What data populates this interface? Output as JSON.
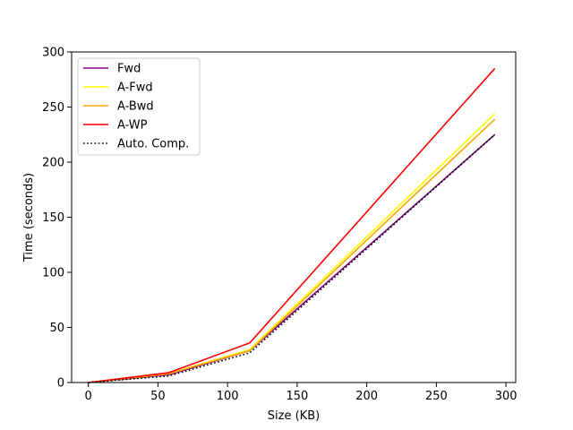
{
  "chart_data": {
    "type": "line",
    "title": "",
    "xlabel": "Size (KB)",
    "ylabel": "Time (seconds)",
    "xlim": [
      -12,
      307
    ],
    "ylim": [
      0,
      300
    ],
    "xticks": [
      0,
      50,
      100,
      150,
      200,
      250,
      300
    ],
    "yticks": [
      0,
      50,
      100,
      150,
      200,
      250,
      300
    ],
    "grid": false,
    "legend_position": "top-left",
    "series": [
      {
        "name": "Fwd",
        "color": "#800080",
        "dash": "solid",
        "x": [
          0,
          58,
          116,
          292
        ],
        "y": [
          0,
          7,
          29,
          225
        ]
      },
      {
        "name": "A-Fwd",
        "color": "#ffff00",
        "dash": "solid",
        "x": [
          0,
          58,
          116,
          292
        ],
        "y": [
          0,
          8,
          30,
          244
        ]
      },
      {
        "name": "A-Bwd",
        "color": "#ffa500",
        "dash": "solid",
        "x": [
          0,
          58,
          116,
          292
        ],
        "y": [
          0,
          8,
          29,
          239
        ]
      },
      {
        "name": "A-WP",
        "color": "#ff0000",
        "dash": "solid",
        "x": [
          0,
          58,
          116,
          292
        ],
        "y": [
          0,
          9,
          36,
          285
        ]
      },
      {
        "name": "Auto. Comp.",
        "color": "#000000",
        "dash": "dotted",
        "x": [
          0,
          58,
          116,
          292
        ],
        "y": [
          0,
          6,
          27,
          225
        ]
      }
    ]
  }
}
